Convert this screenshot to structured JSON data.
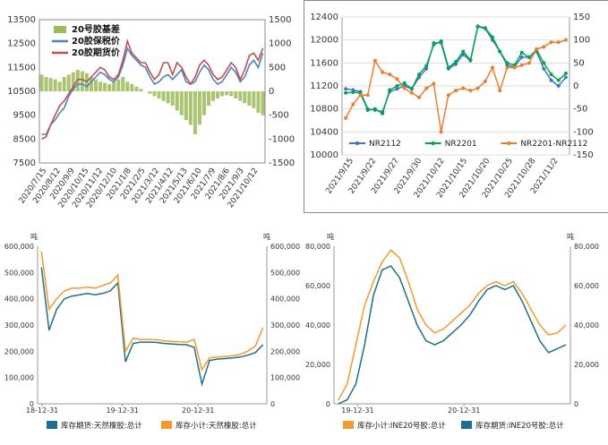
{
  "chart_data": [
    {
      "type": "line",
      "title": "",
      "left_axis": {
        "ticks": [
          "7500",
          "8500",
          "9500",
          "10500",
          "11500",
          "12500",
          "13500"
        ],
        "range": [
          7500,
          13500
        ]
      },
      "right_axis": {
        "ticks": [
          "-1500",
          "-1000",
          "-500",
          "0",
          "500",
          "1000",
          "1500"
        ],
        "range": [
          -1500,
          1500
        ]
      },
      "x_ticks": [
        "2020/7/15",
        "2020/8/12",
        "2020/9/9",
        "2020/10/15",
        "2020/11/12",
        "2020/12/10",
        "2021/1/8",
        "2021/2/5",
        "2021/3/12",
        "2021/4/12",
        "2021/5/13",
        "2021/6/10",
        "2021/7/9",
        "2021/8/6",
        "2021/9/3",
        "2021/10/12"
      ],
      "legend": {
        "position": "top-left",
        "entries": [
          "20号胶基差",
          "20胶保税价",
          "20胶期货价"
        ]
      },
      "series": [
        {
          "name": "20号胶基差",
          "axis": "right",
          "kind": "bar",
          "color": "#9BBB59",
          "values": [
            350,
            300,
            280,
            250,
            200,
            300,
            350,
            400,
            450,
            420,
            380,
            300,
            250,
            200,
            180,
            150,
            200,
            250,
            300,
            200,
            150,
            100,
            50,
            0,
            -50,
            -100,
            -150,
            -200,
            -250,
            -300,
            -400,
            -500,
            -600,
            -700,
            -900,
            -700,
            -500,
            -300,
            -200,
            -150,
            -100,
            -80,
            -100,
            -150,
            -200,
            -250,
            -300,
            -350,
            -450,
            -500
          ]
        },
        {
          "name": "20胶保税价",
          "axis": "left",
          "kind": "line",
          "color": "#4F81BD",
          "values": [
            8700,
            8700,
            9100,
            9300,
            9600,
            9800,
            10300,
            10600,
            10800,
            10800,
            10700,
            10900,
            11100,
            11300,
            11200,
            11000,
            10900,
            11100,
            11600,
            12300,
            12000,
            11800,
            11600,
            11500,
            11100,
            10800,
            10900,
            11100,
            11200,
            11000,
            11200,
            11400,
            10900,
            10800,
            10900,
            11300,
            11600,
            11400,
            11000,
            10800,
            10900,
            11200,
            11500,
            11300,
            10900,
            11100,
            11600,
            11800,
            11500,
            12100
          ]
        },
        {
          "name": "20胶期货价",
          "axis": "left",
          "kind": "line",
          "color": "#C0504D",
          "values": [
            8500,
            8600,
            9100,
            9500,
            9900,
            10100,
            10400,
            10700,
            11000,
            11000,
            10900,
            11100,
            11300,
            11500,
            11400,
            11100,
            11000,
            11200,
            11800,
            12600,
            12100,
            11900,
            11700,
            11700,
            11300,
            11000,
            11200,
            11700,
            11700,
            11200,
            11700,
            11500,
            11100,
            10800,
            11100,
            11600,
            11800,
            11600,
            11200,
            11000,
            11100,
            11400,
            11700,
            11500,
            11000,
            11400,
            12000,
            12100,
            11800,
            12300
          ]
        }
      ]
    },
    {
      "type": "line",
      "title": "",
      "left_axis": {
        "ticks": [
          "10000",
          "10400",
          "10800",
          "11200",
          "11600",
          "12000",
          "12400"
        ],
        "range": [
          10000,
          12400
        ]
      },
      "right_axis": {
        "ticks": [
          "-150",
          "-100",
          "-50",
          "0",
          "50",
          "100",
          "150"
        ],
        "range": [
          -150,
          150
        ]
      },
      "x_ticks": [
        "2021/9/15",
        "2021/9/22",
        "2021/9/27",
        "2021/9/30",
        "2021/10/12",
        "2021/10/15",
        "2021/10/20",
        "2021/10/25",
        "2021/10/28",
        "2021/11/2"
      ],
      "legend": {
        "position": "bottom",
        "entries": [
          "NR2112",
          "NR2201",
          "NR2201-NR2112"
        ]
      },
      "series": [
        {
          "name": "NR2112",
          "axis": "left",
          "color": "#4472C4",
          "marker": "diamond",
          "values": [
            11150,
            11130,
            11100,
            10800,
            10780,
            10750,
            11100,
            11150,
            11200,
            11150,
            11350,
            11500,
            11950,
            11950,
            11500,
            11580,
            11750,
            11640,
            12230,
            12200,
            12000,
            11800,
            11560,
            11530,
            11700,
            11700,
            11800,
            11500,
            11300,
            11200,
            11350
          ]
        },
        {
          "name": "NR2201",
          "axis": "left",
          "color": "#00A651",
          "marker": "circle",
          "values": [
            11080,
            11090,
            11080,
            10780,
            10800,
            10720,
            11130,
            11200,
            11250,
            11150,
            11400,
            11550,
            11920,
            11980,
            11520,
            11620,
            11800,
            11650,
            12240,
            12210,
            12050,
            11800,
            11600,
            11560,
            11780,
            11700,
            11830,
            11600,
            11400,
            11300,
            11420
          ]
        },
        {
          "name": "NR2201-NR2112",
          "axis": "right",
          "color": "#ED7D31",
          "marker": "circle",
          "values": [
            -70,
            -40,
            -20,
            -20,
            55,
            30,
            25,
            15,
            -5,
            -15,
            -25,
            -5,
            5,
            -100,
            -20,
            -10,
            -5,
            -10,
            -5,
            10,
            40,
            -10,
            40,
            40,
            45,
            50,
            80,
            85,
            95,
            95,
            100
          ]
        }
      ]
    },
    {
      "type": "line",
      "title": "",
      "left_unit": "吨",
      "right_unit": "吨",
      "left_axis": {
        "ticks": [
          "0",
          "100,000",
          "200,000",
          "300,000",
          "400,000",
          "500,000",
          "600,000"
        ],
        "range": [
          0,
          600000
        ]
      },
      "right_axis": {
        "ticks": [
          "0",
          "100,000",
          "200,000",
          "300,000",
          "400,000",
          "500,000",
          "600,000"
        ],
        "range": [
          0,
          600000
        ]
      },
      "x_ticks": [
        "18-12-31",
        "19-12-31",
        "20-12-31"
      ],
      "legend": {
        "position": "bottom",
        "entries": [
          "库存期货:天然橡胶:总计",
          "库存小计:天然橡胶:总计"
        ]
      },
      "series": [
        {
          "name": "库存期货:天然橡胶:总计",
          "color": "#1F6E8C",
          "values": [
            520000,
            280000,
            360000,
            400000,
            410000,
            415000,
            420000,
            415000,
            420000,
            430000,
            460000,
            160000,
            230000,
            235000,
            235000,
            234000,
            230000,
            228000,
            226000,
            225000,
            215000,
            75000,
            165000,
            170000,
            172000,
            175000,
            178000,
            185000,
            195000,
            225000
          ]
        },
        {
          "name": "库存小计:天然橡胶:总计",
          "color": "#F29A2E",
          "values": [
            580000,
            360000,
            400000,
            430000,
            440000,
            440000,
            445000,
            440000,
            450000,
            460000,
            490000,
            200000,
            250000,
            245000,
            245000,
            244000,
            240000,
            238000,
            236000,
            235000,
            245000,
            130000,
            175000,
            178000,
            180000,
            183000,
            188000,
            200000,
            220000,
            290000
          ]
        }
      ]
    },
    {
      "type": "line",
      "title": "",
      "left_unit": "吨",
      "right_unit": "吨",
      "left_axis": {
        "ticks": [
          "0",
          "20,000",
          "40,000",
          "60,000",
          "80,000"
        ],
        "range": [
          0,
          80000
        ]
      },
      "right_axis": {
        "ticks": [
          "0",
          "20,000",
          "40,000",
          "60,000",
          "80,000"
        ],
        "range": [
          0,
          80000
        ]
      },
      "x_ticks": [
        "19-12-31",
        "20-12-31"
      ],
      "legend": {
        "position": "bottom",
        "entries": [
          "库存小计:INE20号胶:总计",
          "库存期货:INE20号胶:总计"
        ]
      },
      "series": [
        {
          "name": "库存小计:INE20号胶:总计",
          "color": "#F29A2E",
          "values": [
            2000,
            10000,
            30000,
            50000,
            62000,
            72000,
            78000,
            74000,
            62000,
            48000,
            40000,
            36000,
            38000,
            42000,
            46000,
            50000,
            56000,
            60000,
            62000,
            60000,
            62000,
            56000,
            48000,
            40000,
            35000,
            36000,
            40000
          ]
        },
        {
          "name": "库存期货:INE20号胶:总计",
          "color": "#1F6E8C",
          "values": [
            0,
            2000,
            10000,
            30000,
            55000,
            68000,
            70000,
            64000,
            52000,
            40000,
            32000,
            30000,
            32000,
            36000,
            40000,
            45000,
            52000,
            58000,
            60000,
            58000,
            60000,
            52000,
            42000,
            32000,
            26000,
            28000,
            30000
          ]
        }
      ]
    }
  ]
}
